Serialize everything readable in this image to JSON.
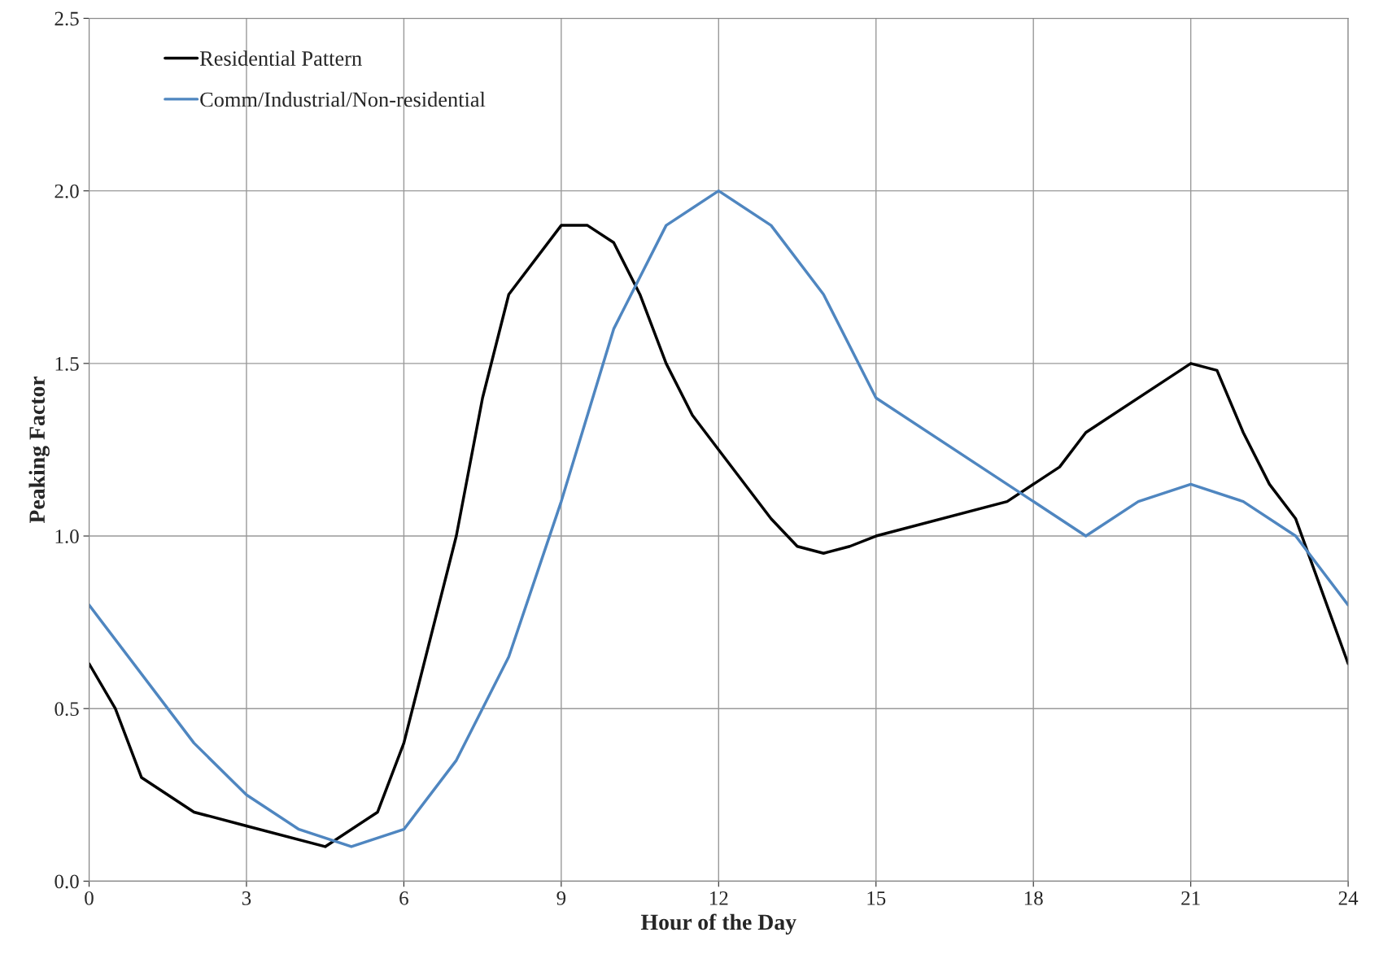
{
  "chart_data": {
    "type": "line",
    "xlabel": "Hour of the Day",
    "ylabel": "Peaking Factor",
    "xlim": [
      0,
      24
    ],
    "xticks": [
      0,
      3,
      6,
      9,
      12,
      15,
      18,
      21,
      24
    ],
    "ylim": [
      0,
      2.5
    ],
    "yticks": [
      {
        "value": 0,
        "label": "0.0"
      },
      {
        "value": 0.5,
        "label": "0.5"
      },
      {
        "value": 1,
        "label": "1.0"
      },
      {
        "value": 1.5,
        "label": "1.5"
      },
      {
        "value": 2,
        "label": "2.0"
      },
      {
        "value": 2.5,
        "label": "2.5"
      }
    ],
    "grid": true,
    "legend": "top left",
    "marker": "none",
    "line_style": "solid",
    "series": [
      {
        "name": "Residential Pattern",
        "color": "#000000",
        "x": [
          0,
          0.5,
          1,
          2,
          3,
          4.5,
          5.5,
          6,
          7,
          7.5,
          8,
          9,
          9.5,
          10,
          10.5,
          11,
          11.5,
          12,
          13,
          13.5,
          14,
          14.5,
          15,
          17.5,
          18.5,
          19,
          21,
          21.5,
          22,
          22.5,
          23,
          24
        ],
        "values": [
          0.63,
          0.5,
          0.3,
          0.2,
          0.16,
          0.1,
          0.2,
          0.4,
          1.0,
          1.4,
          1.7,
          1.9,
          1.9,
          1.85,
          1.7,
          1.5,
          1.35,
          1.25,
          1.05,
          0.97,
          0.95,
          0.97,
          1.0,
          1.1,
          1.2,
          1.3,
          1.5,
          1.48,
          1.3,
          1.15,
          1.05,
          0.63
        ]
      },
      {
        "name": "Comm/Industrial/Non-residential",
        "color": "#4f86c0",
        "x": [
          0,
          2,
          3,
          4,
          5,
          6,
          7,
          8,
          9,
          10,
          11,
          12,
          13,
          14,
          15,
          19,
          20,
          21,
          22,
          23,
          24
        ],
        "values": [
          0.8,
          0.4,
          0.25,
          0.15,
          0.1,
          0.15,
          0.35,
          0.65,
          1.1,
          1.6,
          1.9,
          2.0,
          1.9,
          1.7,
          1.4,
          1.0,
          1.1,
          1.15,
          1.1,
          1.0,
          0.8
        ]
      }
    ]
  }
}
